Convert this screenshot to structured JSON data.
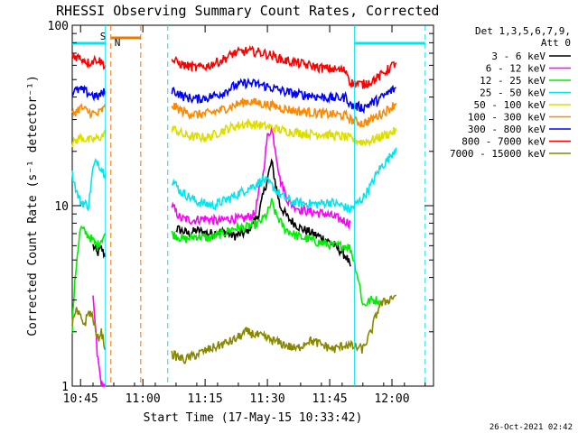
{
  "chart_data": {
    "type": "line",
    "title": "RHESSI Observing Summary Count Rates, Corrected",
    "xlabel": "Start Time (17-May-15 10:33:42)",
    "ylabel": "Corrected Count Rate (s⁻¹ detector⁻¹)",
    "y_scale": "log",
    "ylim": [
      1,
      100
    ],
    "y_ticks": [
      "1",
      "10",
      "100"
    ],
    "xlim_minutes": [
      10.0,
      97.0
    ],
    "x_ticks": [
      {
        "minute": 12,
        "label": "10:45"
      },
      {
        "minute": 27,
        "label": "11:00"
      },
      {
        "minute": 42,
        "label": "11:15"
      },
      {
        "minute": 57,
        "label": "11:30"
      },
      {
        "minute": 72,
        "label": "11:45"
      },
      {
        "minute": 87,
        "label": "12:00"
      }
    ],
    "legend": {
      "title_lines": [
        "Det 1,3,5,6,7,9,",
        "Att 0"
      ],
      "placement": "right"
    },
    "flags": {
      "S": {
        "label": "S",
        "color": "#ee7700",
        "x": [
          19.3,
          26.5
        ]
      },
      "N": {
        "label": "N",
        "color": "#00e5ee",
        "x": [
          10.0,
          18.0
        ]
      }
    },
    "timestamp": "26-Oct-2021 02:42",
    "colors": {
      "axis": "#000000",
      "night_line": "#00e5ee",
      "saa_line": "#ee7700"
    },
    "series": [
      {
        "name": "3 - 6 keV",
        "color": "#000000",
        "points": [
          [
            15,
            6
          ],
          [
            16,
            5.4
          ],
          [
            17,
            5.8
          ],
          [
            18,
            5.2
          ],
          [
            33,
            null
          ],
          [
            35,
            7.5
          ],
          [
            38,
            7.0
          ],
          [
            40,
            7.3
          ],
          [
            43,
            7.0
          ],
          [
            46,
            7.2
          ],
          [
            49,
            6.8
          ],
          [
            52,
            7.1
          ],
          [
            55,
            9.0
          ],
          [
            57,
            14.0
          ],
          [
            58,
            17.5
          ],
          [
            59,
            13.0
          ],
          [
            60,
            10.0
          ],
          [
            62,
            8.5
          ],
          [
            65,
            7.5
          ],
          [
            68,
            7.0
          ],
          [
            71,
            6.5
          ],
          [
            74,
            5.8
          ],
          [
            76,
            5.2
          ],
          [
            77,
            4.6
          ]
        ]
      },
      {
        "name": "6 - 12 keV",
        "color": "#ff00ff",
        "points": [
          [
            15,
            3.0
          ],
          [
            16,
            1.5
          ],
          [
            17,
            1.0
          ],
          [
            18,
            1.0
          ],
          [
            33,
            null
          ],
          [
            34,
            10.0
          ],
          [
            36,
            8.5
          ],
          [
            39,
            8.3
          ],
          [
            42,
            8.5
          ],
          [
            45,
            8.2
          ],
          [
            48,
            8.5
          ],
          [
            51,
            8.4
          ],
          [
            54,
            9.0
          ],
          [
            56,
            15.0
          ],
          [
            57,
            24.0
          ],
          [
            58,
            27.0
          ],
          [
            59,
            20.0
          ],
          [
            60,
            14.0
          ],
          [
            62,
            10.5
          ],
          [
            65,
            9.5
          ],
          [
            68,
            9.2
          ],
          [
            71,
            9.0
          ],
          [
            74,
            8.5
          ],
          [
            77,
            8.0
          ]
        ]
      },
      {
        "name": "12 - 25 keV",
        "color": "#00ee00",
        "points": [
          [
            10,
            2.0
          ],
          [
            12,
            7.5
          ],
          [
            14,
            6.8
          ],
          [
            16,
            6.0
          ],
          [
            18,
            7.0
          ],
          [
            33,
            null
          ],
          [
            34,
            7.0
          ],
          [
            37,
            6.5
          ],
          [
            40,
            6.8
          ],
          [
            43,
            6.6
          ],
          [
            46,
            7.0
          ],
          [
            49,
            7.5
          ],
          [
            52,
            7.6
          ],
          [
            55,
            8.0
          ],
          [
            57,
            9.0
          ],
          [
            58,
            10.5
          ],
          [
            59,
            9.0
          ],
          [
            61,
            7.5
          ],
          [
            64,
            6.8
          ],
          [
            67,
            6.5
          ],
          [
            70,
            6.2
          ],
          [
            73,
            6.0
          ],
          [
            76,
            6.0
          ],
          [
            77,
            5.8
          ],
          [
            80,
            2.8
          ],
          [
            82,
            3.0
          ],
          [
            84,
            3.0
          ]
        ]
      },
      {
        "name": "25 - 50 keV",
        "color": "#00e5ee",
        "points": [
          [
            10,
            15.0
          ],
          [
            11,
            12.0
          ],
          [
            12,
            10.5
          ],
          [
            14,
            10.0
          ],
          [
            15,
            16.0
          ],
          [
            16,
            18.0
          ],
          [
            17,
            16.0
          ],
          [
            18,
            15.0
          ],
          [
            33,
            null
          ],
          [
            34,
            14.0
          ],
          [
            36,
            12.0
          ],
          [
            40,
            10.5
          ],
          [
            44,
            10.0
          ],
          [
            48,
            11.0
          ],
          [
            51,
            12.0
          ],
          [
            54,
            13.0
          ],
          [
            56,
            14.0
          ],
          [
            58,
            13.0
          ],
          [
            60,
            11.5
          ],
          [
            63,
            10.5
          ],
          [
            66,
            10.3
          ],
          [
            69,
            10.2
          ],
          [
            72,
            10.5
          ],
          [
            75,
            10.0
          ],
          [
            77,
            9.5
          ],
          [
            80,
            11.0
          ],
          [
            82,
            13.0
          ],
          [
            84,
            16.0
          ],
          [
            86,
            18.0
          ],
          [
            88,
            21.0
          ]
        ]
      },
      {
        "name": "50 - 100 keV",
        "color": "#dddd00",
        "points": [
          [
            10,
            22.0
          ],
          [
            12,
            24.0
          ],
          [
            14,
            23.0
          ],
          [
            16,
            23.5
          ],
          [
            18,
            25.0
          ],
          [
            33,
            null
          ],
          [
            34,
            27.0
          ],
          [
            37,
            24.5
          ],
          [
            40,
            24.0
          ],
          [
            43,
            24.0
          ],
          [
            46,
            26.0
          ],
          [
            49,
            27.5
          ],
          [
            52,
            28.5
          ],
          [
            55,
            28.0
          ],
          [
            58,
            27.0
          ],
          [
            61,
            26.0
          ],
          [
            64,
            25.5
          ],
          [
            67,
            25.0
          ],
          [
            70,
            25.0
          ],
          [
            73,
            24.5
          ],
          [
            76,
            24.0
          ],
          [
            77,
            23.5
          ],
          [
            80,
            22.5
          ],
          [
            82,
            23.0
          ],
          [
            84,
            24.0
          ],
          [
            86,
            25.0
          ],
          [
            88,
            26.0
          ]
        ]
      },
      {
        "name": "100 - 300 keV",
        "color": "#ff8800",
        "points": [
          [
            10,
            32.0
          ],
          [
            12,
            35.0
          ],
          [
            14,
            33.0
          ],
          [
            16,
            32.0
          ],
          [
            18,
            35.0
          ],
          [
            33,
            null
          ],
          [
            34,
            36.0
          ],
          [
            37,
            33.0
          ],
          [
            40,
            32.0
          ],
          [
            43,
            32.5
          ],
          [
            46,
            34.0
          ],
          [
            49,
            36.0
          ],
          [
            52,
            38.0
          ],
          [
            55,
            37.0
          ],
          [
            58,
            36.0
          ],
          [
            61,
            34.5
          ],
          [
            64,
            33.5
          ],
          [
            67,
            33.0
          ],
          [
            70,
            32.5
          ],
          [
            73,
            32.0
          ],
          [
            76,
            31.5
          ],
          [
            77,
            30.0
          ],
          [
            80,
            28.5
          ],
          [
            82,
            30.0
          ],
          [
            84,
            32.0
          ],
          [
            86,
            34.0
          ],
          [
            88,
            37.0
          ]
        ]
      },
      {
        "name": "300 - 800 keV",
        "color": "#0000ff",
        "points": [
          [
            10,
            43.0
          ],
          [
            12,
            44.0
          ],
          [
            14,
            42.0
          ],
          [
            16,
            40.0
          ],
          [
            18,
            43.0
          ],
          [
            33,
            null
          ],
          [
            34,
            44.0
          ],
          [
            37,
            40.0
          ],
          [
            40,
            39.0
          ],
          [
            43,
            40.0
          ],
          [
            46,
            42.0
          ],
          [
            49,
            46.0
          ],
          [
            52,
            48.0
          ],
          [
            55,
            47.0
          ],
          [
            58,
            45.0
          ],
          [
            61,
            43.0
          ],
          [
            64,
            41.5
          ],
          [
            67,
            41.0
          ],
          [
            70,
            40.0
          ],
          [
            73,
            39.5
          ],
          [
            76,
            40.0
          ],
          [
            77,
            36.0
          ],
          [
            80,
            35.0
          ],
          [
            82,
            37.0
          ],
          [
            84,
            39.0
          ],
          [
            86,
            42.0
          ],
          [
            88,
            45.0
          ]
        ]
      },
      {
        "name": "800 - 7000 keV",
        "color": "#ff0000",
        "points": [
          [
            10,
            68.0
          ],
          [
            12,
            66.0
          ],
          [
            14,
            62.0
          ],
          [
            16,
            65.0
          ],
          [
            18,
            60.0
          ],
          [
            33,
            null
          ],
          [
            34,
            64.0
          ],
          [
            37,
            60.0
          ],
          [
            40,
            58.0
          ],
          [
            43,
            60.0
          ],
          [
            46,
            64.0
          ],
          [
            49,
            70.0
          ],
          [
            52,
            72.0
          ],
          [
            55,
            71.0
          ],
          [
            58,
            68.0
          ],
          [
            61,
            64.0
          ],
          [
            64,
            62.0
          ],
          [
            67,
            60.0
          ],
          [
            70,
            58.0
          ],
          [
            73,
            57.0
          ],
          [
            76,
            56.0
          ],
          [
            77,
            48.0
          ],
          [
            80,
            47.0
          ],
          [
            82,
            49.0
          ],
          [
            84,
            52.0
          ],
          [
            86,
            57.0
          ],
          [
            88,
            62.0
          ]
        ]
      },
      {
        "name": "7000 - 15000 keV",
        "color": "#888800",
        "points": [
          [
            10,
            2.2
          ],
          [
            11,
            2.6
          ],
          [
            12,
            2.4
          ],
          [
            13,
            2.2
          ],
          [
            14,
            2.6
          ],
          [
            15,
            2.4
          ],
          [
            16,
            1.8
          ],
          [
            17,
            2.0
          ],
          [
            18,
            1.6
          ],
          [
            33,
            null
          ],
          [
            34,
            1.5
          ],
          [
            37,
            1.4
          ],
          [
            40,
            1.5
          ],
          [
            43,
            1.6
          ],
          [
            46,
            1.7
          ],
          [
            49,
            1.8
          ],
          [
            52,
            2.0
          ],
          [
            55,
            1.9
          ],
          [
            58,
            1.8
          ],
          [
            61,
            1.7
          ],
          [
            64,
            1.6
          ],
          [
            67,
            1.8
          ],
          [
            70,
            1.7
          ],
          [
            73,
            1.6
          ],
          [
            76,
            1.7
          ],
          [
            80,
            1.6
          ],
          [
            82,
            2.0
          ],
          [
            84,
            2.8
          ],
          [
            86,
            3.0
          ],
          [
            88,
            3.2
          ]
        ]
      }
    ]
  }
}
